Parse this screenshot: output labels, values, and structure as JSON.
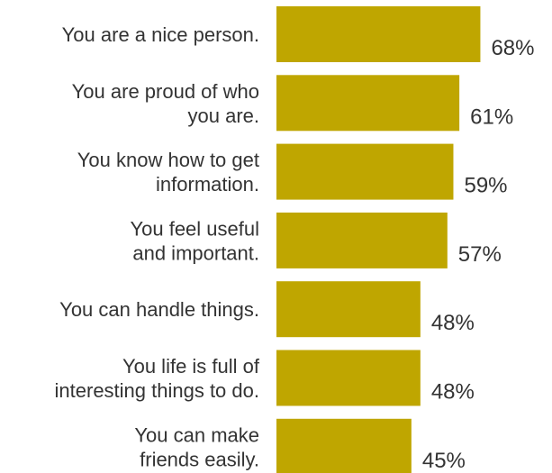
{
  "chart_data": {
    "type": "bar",
    "orientation": "horizontal",
    "categories": [
      [
        "You are a nice person."
      ],
      [
        "You are proud of who",
        "you are."
      ],
      [
        "You know how to get",
        "information."
      ],
      [
        "You feel useful",
        "and important."
      ],
      [
        "You can handle things."
      ],
      [
        "You life is full of",
        "interesting things to do."
      ],
      [
        "You can make",
        "friends easily."
      ]
    ],
    "values": [
      68,
      61,
      59,
      57,
      48,
      48,
      45
    ],
    "value_labels": [
      "68%",
      "61%",
      "59%",
      "57%",
      "48%",
      "48%",
      "45%"
    ],
    "xlim": [
      0,
      100
    ],
    "grid": false,
    "legend": "none",
    "bar_color": "#bfa600",
    "text_color": "#333333"
  }
}
